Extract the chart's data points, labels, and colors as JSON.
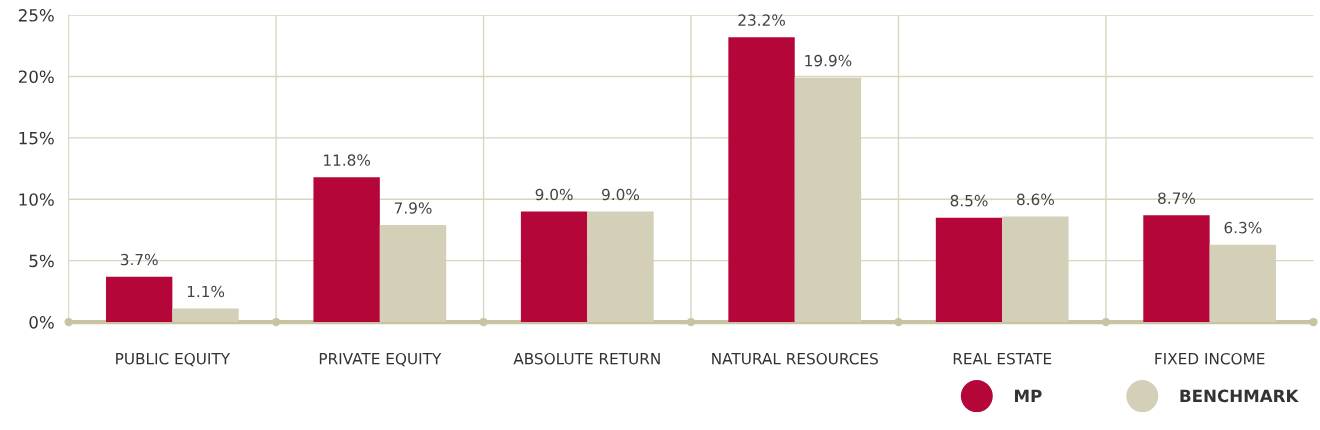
{
  "chart_data": {
    "type": "bar",
    "categories": [
      "PUBLIC EQUITY",
      "PRIVATE EQUITY",
      "ABSOLUTE RETURN",
      "NATURAL RESOURCES",
      "REAL ESTATE",
      "FIXED INCOME"
    ],
    "series": [
      {
        "name": "MP",
        "color": "#b5063a",
        "values": [
          3.7,
          11.8,
          9.0,
          23.2,
          8.5,
          8.7
        ],
        "value_labels": [
          "3.7%",
          "11.8%",
          "9.0%",
          "23.2%",
          "8.5%",
          "8.7%"
        ]
      },
      {
        "name": "BENCHMARK",
        "color": "#d4d0b8",
        "values": [
          1.1,
          7.9,
          9.0,
          19.9,
          8.6,
          6.3
        ],
        "value_labels": [
          "1.1%",
          "7.9%",
          "9.0%",
          "19.9%",
          "8.6%",
          "6.3%"
        ]
      }
    ],
    "ylim": [
      0,
      25
    ],
    "yticks": [
      {
        "value": 0,
        "label": "0%"
      },
      {
        "value": 5,
        "label": "5%"
      },
      {
        "value": 10,
        "label": "10%"
      },
      {
        "value": 15,
        "label": "15%"
      },
      {
        "value": 20,
        "label": "20%"
      },
      {
        "value": 25,
        "label": "25%"
      }
    ],
    "grid": true,
    "legend": "bottom right"
  }
}
